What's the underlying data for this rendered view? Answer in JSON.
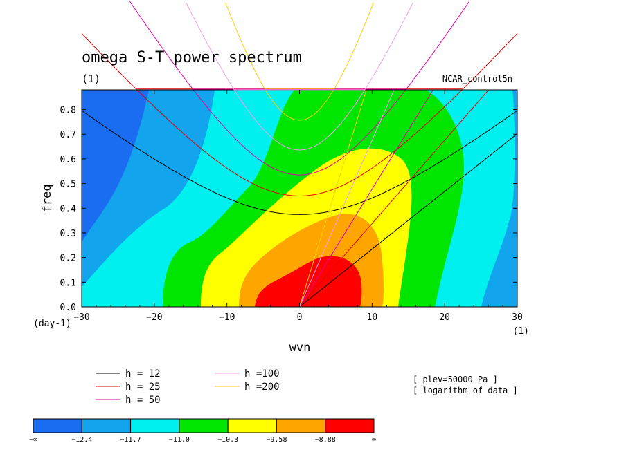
{
  "chart_data": {
    "type": "heatmap",
    "title": "omega S-T power spectrum",
    "subtitle_left": "(1)",
    "subtitle_right": "NCAR_control5n",
    "xlabel": "wvn",
    "ylabel": "freq",
    "x_unit_label": "(1)",
    "y_unit_label": "(day-1)",
    "xlim": [
      -30,
      30
    ],
    "ylim": [
      0,
      0.88
    ],
    "xticks": [
      "−30",
      "−20",
      "−10",
      "0",
      "10",
      "20",
      "30"
    ],
    "yticks": [
      "0.0",
      "0.1",
      "0.2",
      "0.3",
      "0.4",
      "0.5",
      "0.6",
      "0.7",
      "0.8"
    ],
    "contour_levels": [
      "−∞",
      "−12.4",
      "−11.7",
      "−11.0",
      "−10.3",
      "−9.58",
      "−8.88",
      "∞"
    ],
    "contour_colors": [
      "#1a6cf0",
      "#12a4ec",
      "#00f0f0",
      "#00e600",
      "#ffff00",
      "#ffa500",
      "#ff0000"
    ],
    "dispersion_legend": [
      {
        "label": "h = 12",
        "color": "#000000"
      },
      {
        "label": "h = 25",
        "color": "#e00000"
      },
      {
        "label": "h = 50",
        "color": "#e000a0"
      },
      {
        "label": "h =100",
        "color": "#f0a0f0"
      },
      {
        "label": "h =200",
        "color": "#ffd000"
      }
    ],
    "annotations": [
      "[ plev=50000 Pa ]",
      "[ logarithm of data ]"
    ],
    "grid": false
  }
}
